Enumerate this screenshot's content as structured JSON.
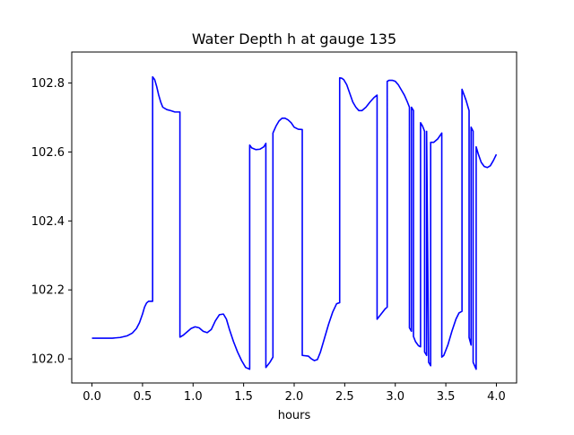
{
  "chart_data": {
    "type": "line",
    "title": "Water Depth h at gauge 135",
    "xlabel": "hours",
    "ylabel": "",
    "xlim": [
      -0.2,
      4.2
    ],
    "ylim": [
      101.93,
      102.89
    ],
    "xticks": [
      0.0,
      0.5,
      1.0,
      1.5,
      2.0,
      2.5,
      3.0,
      3.5,
      4.0
    ],
    "xtick_labels": [
      "0.0",
      "0.5",
      "1.0",
      "1.5",
      "2.0",
      "2.5",
      "3.0",
      "3.5",
      "4.0"
    ],
    "yticks": [
      102.0,
      102.2,
      102.4,
      102.6,
      102.8
    ],
    "ytick_labels": [
      "102.0",
      "102.2",
      "102.4",
      "102.6",
      "102.8"
    ],
    "grid": false,
    "line_color": "#0000ff",
    "series": [
      {
        "x": [
          0.0,
          0.1,
          0.2,
          0.28,
          0.35,
          0.4,
          0.44,
          0.47,
          0.5,
          0.52,
          0.54,
          0.56,
          0.58,
          0.59,
          0.6,
          0.6,
          0.62,
          0.64,
          0.66,
          0.68,
          0.7,
          0.74,
          0.78,
          0.82,
          0.86,
          0.87,
          0.87,
          0.9,
          0.94,
          0.98,
          1.02,
          1.06,
          1.1,
          1.14,
          1.18,
          1.22,
          1.26,
          1.3,
          1.33,
          1.36,
          1.4,
          1.44,
          1.48,
          1.52,
          1.56,
          1.56,
          1.58,
          1.62,
          1.66,
          1.7,
          1.72,
          1.72,
          1.76,
          1.79,
          1.79,
          1.82,
          1.85,
          1.88,
          1.91,
          1.94,
          1.97,
          2.0,
          2.04,
          2.08,
          2.08,
          2.14,
          2.17,
          2.2,
          2.23,
          2.26,
          2.3,
          2.34,
          2.38,
          2.42,
          2.45,
          2.45,
          2.47,
          2.49,
          2.52,
          2.55,
          2.58,
          2.61,
          2.64,
          2.67,
          2.71,
          2.75,
          2.79,
          2.82,
          2.82,
          2.86,
          2.9,
          2.92,
          2.92,
          2.94,
          2.97,
          3.0,
          3.03,
          3.06,
          3.09,
          3.12,
          3.14,
          3.14,
          3.16,
          3.16,
          3.18,
          3.18,
          3.2,
          3.23,
          3.25,
          3.25,
          3.27,
          3.29,
          3.29,
          3.31,
          3.31,
          3.33,
          3.35,
          3.35,
          3.38,
          3.42,
          3.46,
          3.46,
          3.48,
          3.52,
          3.56,
          3.6,
          3.63,
          3.66,
          3.66,
          3.7,
          3.73,
          3.73,
          3.75,
          3.75,
          3.77,
          3.77,
          3.8,
          3.8,
          3.82,
          3.85,
          3.88,
          3.91,
          3.94,
          3.97,
          4.0
        ],
        "y": [
          102.06,
          102.06,
          102.06,
          102.062,
          102.067,
          102.075,
          102.088,
          102.105,
          102.13,
          102.15,
          102.162,
          102.167,
          102.167,
          102.167,
          102.167,
          102.818,
          102.81,
          102.79,
          102.765,
          102.745,
          102.73,
          102.723,
          102.72,
          102.716,
          102.716,
          102.716,
          102.063,
          102.068,
          102.078,
          102.088,
          102.093,
          102.09,
          102.08,
          102.076,
          102.085,
          102.11,
          102.128,
          102.13,
          102.115,
          102.085,
          102.05,
          102.02,
          101.995,
          101.975,
          101.97,
          102.62,
          102.612,
          102.607,
          102.608,
          102.615,
          102.625,
          101.975,
          101.99,
          102.005,
          102.655,
          102.675,
          102.69,
          102.698,
          102.698,
          102.693,
          102.685,
          102.672,
          102.666,
          102.665,
          102.01,
          102.008,
          102.0,
          101.995,
          101.998,
          102.02,
          102.06,
          102.1,
          102.135,
          102.16,
          102.163,
          102.815,
          102.814,
          102.81,
          102.795,
          102.77,
          102.745,
          102.73,
          102.72,
          102.72,
          102.73,
          102.745,
          102.758,
          102.765,
          102.115,
          102.13,
          102.145,
          102.15,
          102.805,
          102.808,
          102.808,
          102.805,
          102.795,
          102.78,
          102.765,
          102.745,
          102.73,
          102.09,
          102.08,
          102.73,
          102.72,
          102.065,
          102.05,
          102.038,
          102.035,
          102.685,
          102.675,
          102.66,
          102.02,
          102.01,
          102.66,
          101.99,
          101.98,
          102.628,
          102.628,
          102.638,
          102.655,
          102.005,
          102.01,
          102.04,
          102.08,
          102.115,
          102.133,
          102.138,
          102.782,
          102.75,
          102.72,
          102.062,
          102.04,
          102.672,
          102.66,
          101.99,
          101.97,
          102.615,
          102.595,
          102.57,
          102.558,
          102.555,
          102.56,
          102.575,
          102.593
        ]
      }
    ]
  }
}
